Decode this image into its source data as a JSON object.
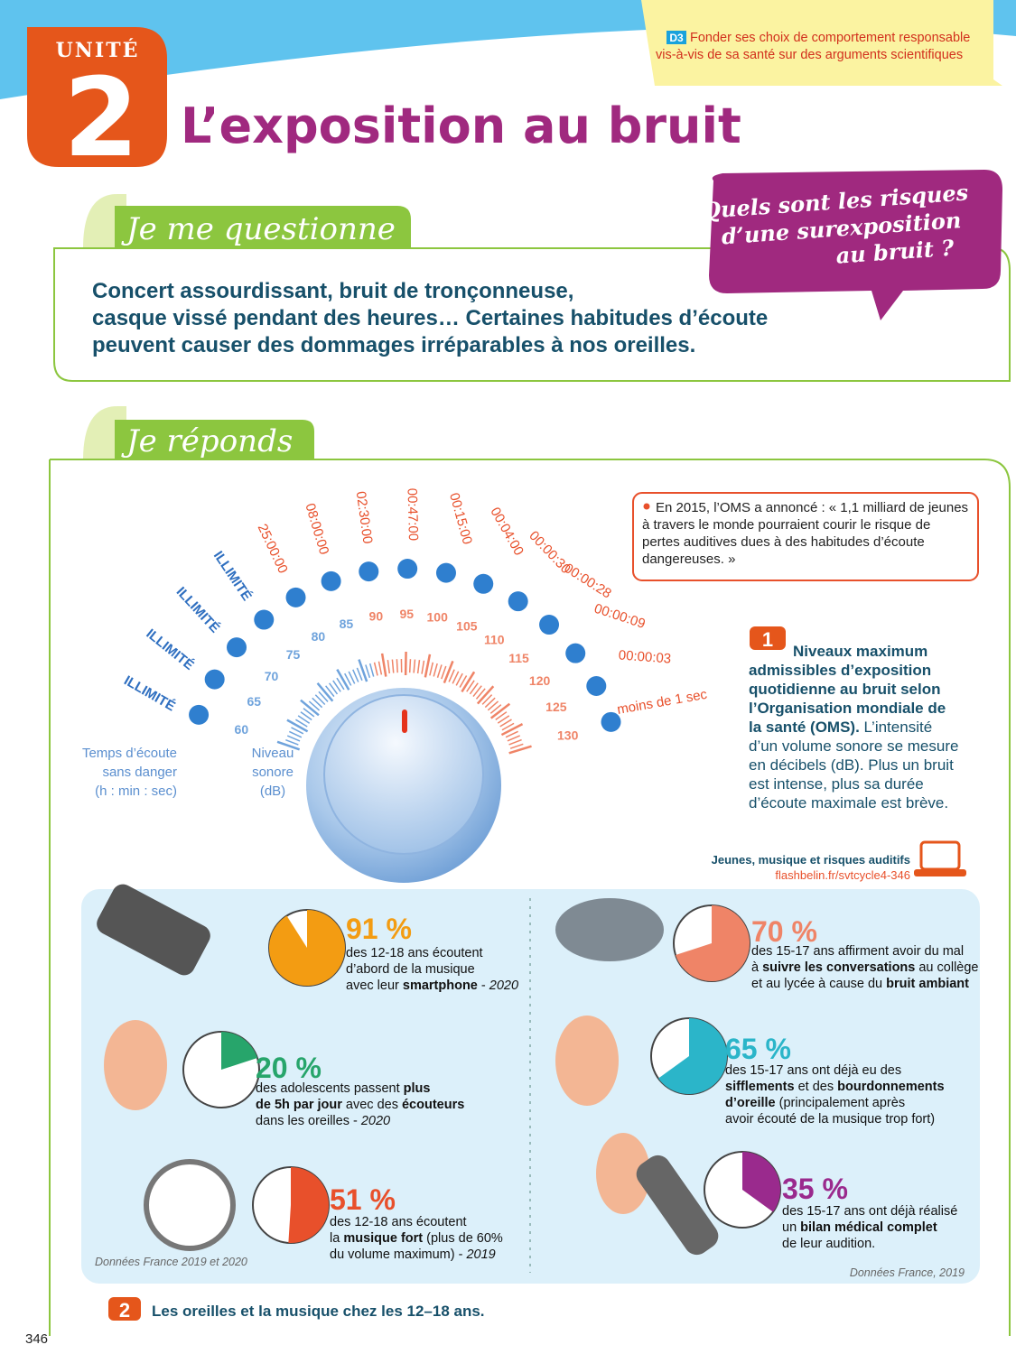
{
  "header": {
    "unit_label": "UNITÉ",
    "unit_number": "2",
    "title": "L’exposition au bruit",
    "skill": {
      "code": "D3",
      "lines": [
        "Fonder ses choix de comportement responsable",
        "vis-à-vis de sa santé sur des arguments scientifiques"
      ]
    }
  },
  "question_section": {
    "heading": "Je me questionne",
    "text_lines": [
      "Concert assourdissant, bruit de tronçonneuse,",
      "casque vissé pendant des heures… Certaines habitudes d’écoute",
      "peuvent causer des dommages irréparables à nos oreilles."
    ],
    "bubble_lines": [
      "Quels sont les risques",
      "d’une surexposition",
      "au bruit ?"
    ]
  },
  "answer_section": {
    "heading": "Je réponds"
  },
  "document1": {
    "time_axis_label_lines": [
      "Temps d’écoute",
      "sans danger",
      "(h : min : sec)"
    ],
    "level_axis_label_lines": [
      "Niveau",
      "sonore",
      "(dB)"
    ],
    "levels": [
      60,
      65,
      70,
      75,
      80,
      85,
      90,
      95,
      100,
      105,
      110,
      115,
      120,
      125,
      130
    ],
    "durations": [
      "ILLIMITÉ",
      "ILLIMITÉ",
      "ILLIMITÉ",
      "ILLIMITÉ",
      "25:00:00",
      "08:00:00",
      "02:30:00",
      "00:47:00",
      "00:15:00",
      "00:04:00",
      "00:00:30",
      "00:00:28",
      "00:00:09",
      "00:00:03",
      "moins de 1 sec"
    ],
    "quote_lines": [
      "En 2015, l’OMS a annoncé : « 1,1 milliard de jeunes",
      "à travers le monde pourraient courir le risque de",
      "pertes auditives dues à des habitudes d’écoute",
      "dangereuses. »"
    ],
    "number": "1",
    "caption_lines": [
      [
        {
          "text": "Niveaux maximum",
          "style": "bold"
        }
      ],
      [
        {
          "text": "admissibles d’exposition",
          "style": "bold"
        }
      ],
      [
        {
          "text": "quotidienne au bruit selon",
          "style": "bold"
        }
      ],
      [
        {
          "text": "l’Organisation mondiale de",
          "style": "bold"
        }
      ],
      [
        {
          "text": "la santé (OMS).",
          "style": "bold"
        },
        {
          "text": " L’intensité"
        }
      ],
      [
        {
          "text": "d’un volume sonore se mesure"
        }
      ],
      [
        {
          "text": "en décibels (dB). Plus un bruit"
        }
      ],
      [
        {
          "text": "est intense, plus sa durée"
        }
      ],
      [
        {
          "text": "d’écoute maximale est brève."
        }
      ]
    ],
    "link": {
      "title": "Jeunes, musique et risques auditifs",
      "url": "flashbelin.fr/svtcycle4-346"
    }
  },
  "document2": {
    "number": "2",
    "caption": "Les oreilles et la musique chez les 12–18 ans.",
    "sources": [
      "Données France 2019 et 2020",
      "Données France, 2019"
    ],
    "stats": [
      {
        "percent": 91,
        "percent_label": "91 %",
        "color": "#f39c12",
        "lines": [
          [
            {
              "text": "des 12-18 ans écoutent"
            }
          ],
          [
            {
              "text": "d’abord de la musique"
            }
          ],
          [
            {
              "text": "avec leur "
            },
            {
              "text": "smartphone",
              "style": "bold"
            },
            {
              "text": " - "
            },
            {
              "text": "2020",
              "style": "italic"
            }
          ]
        ]
      },
      {
        "percent": 20,
        "percent_label": "20 %",
        "color": "#27a56b",
        "lines": [
          [
            {
              "text": "des adolescents passent "
            },
            {
              "text": "plus",
              "style": "bold"
            }
          ],
          [
            {
              "text": "de 5h par jour",
              "style": "bold"
            },
            {
              "text": " avec des "
            },
            {
              "text": "écouteurs",
              "style": "bold"
            }
          ],
          [
            {
              "text": "dans les oreilles - "
            },
            {
              "text": "2020",
              "style": "italic"
            }
          ]
        ]
      },
      {
        "percent": 51,
        "percent_label": "51 %",
        "color": "#e8502b",
        "lines": [
          [
            {
              "text": "des 12-18 ans écoutent"
            }
          ],
          [
            {
              "text": "la "
            },
            {
              "text": "musique fort",
              "style": "bold"
            },
            {
              "text": " (plus de 60%"
            }
          ],
          [
            {
              "text": "du volume maximum) - "
            },
            {
              "text": "2019",
              "style": "italic"
            }
          ]
        ]
      },
      {
        "percent": 70,
        "percent_label": "70 %",
        "color": "#ef8467",
        "lines": [
          [
            {
              "text": "des 15-17 ans affirment avoir du mal"
            }
          ],
          [
            {
              "text": "à "
            },
            {
              "text": "suivre les conversations",
              "style": "bold"
            },
            {
              "text": " au collège"
            }
          ],
          [
            {
              "text": "et au lycée à cause du "
            },
            {
              "text": "bruit ambiant",
              "style": "bold"
            }
          ]
        ]
      },
      {
        "percent": 65,
        "percent_label": "65 %",
        "color": "#2bb5c9",
        "lines": [
          [
            {
              "text": "des 15-17 ans ont déjà eu des"
            }
          ],
          [
            {
              "text": "sifflements",
              "style": "bold"
            },
            {
              "text": " et des "
            },
            {
              "text": "bourdonnements",
              "style": "bold"
            }
          ],
          [
            {
              "text": "d’oreille",
              "style": "bold"
            },
            {
              "text": " (principalement après"
            }
          ],
          [
            {
              "text": "avoir écouté de la musique trop fort)"
            }
          ]
        ]
      },
      {
        "percent": 35,
        "percent_label": "35 %",
        "color": "#9a2a8d",
        "lines": [
          [
            {
              "text": "des 15-17 ans ont déjà réalisé"
            }
          ],
          [
            {
              "text": "un "
            },
            {
              "text": "bilan médical complet",
              "style": "bold"
            }
          ],
          [
            {
              "text": "de leur audition."
            }
          ]
        ]
      }
    ]
  },
  "page_number": "346"
}
